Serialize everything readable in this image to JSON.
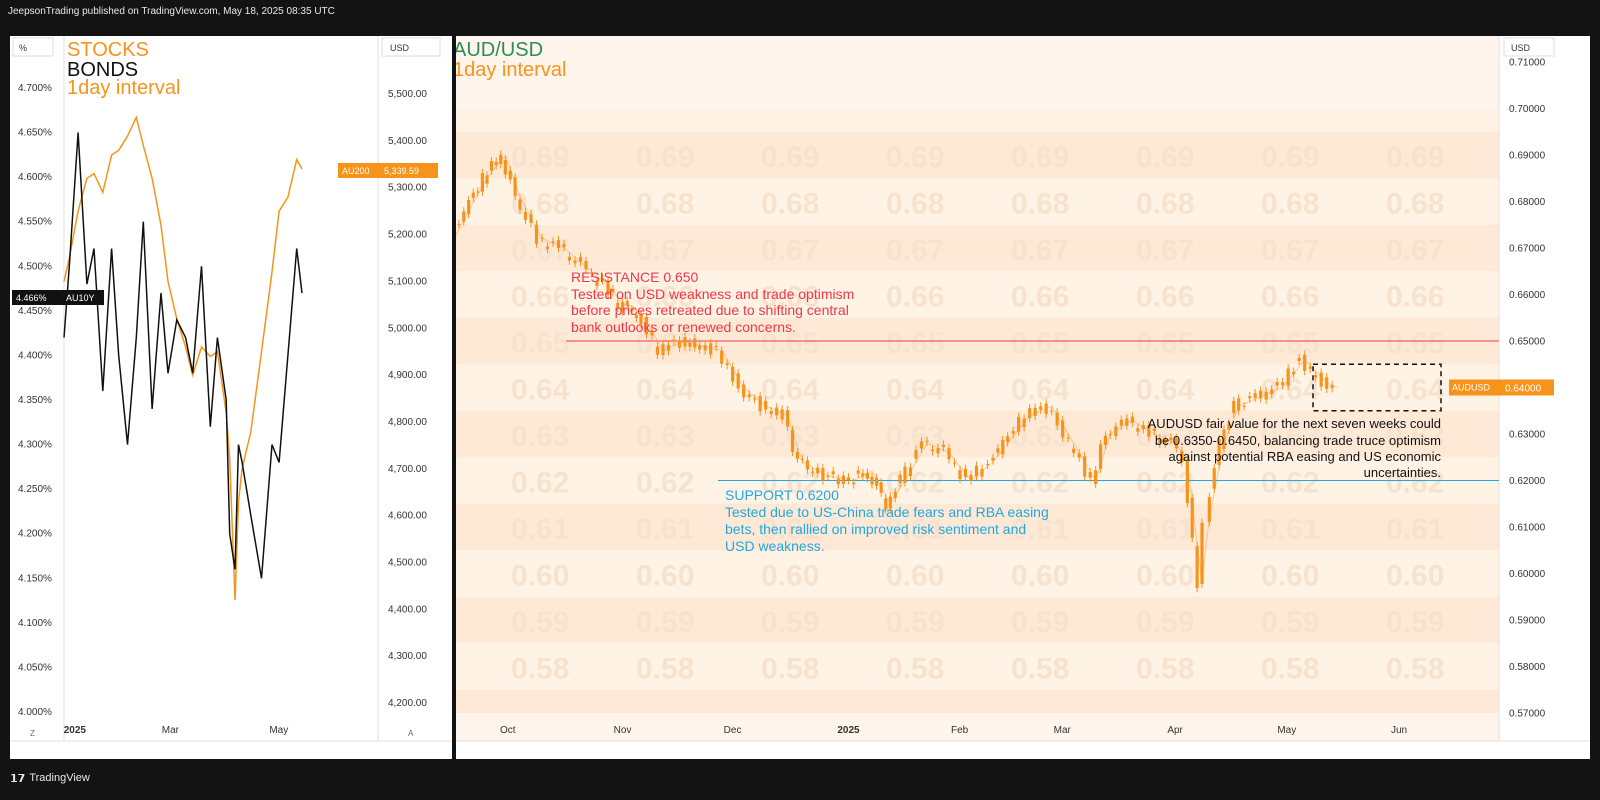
{
  "header": {
    "published": "JeepsonTrading published on TradingView.com, May 18, 2025 08:35 UTC"
  },
  "footer": {
    "logo_text": "TradingView",
    "logo_icon": "tradingview-logo-icon"
  },
  "colors": {
    "orange": "#f7931a",
    "black": "#111111",
    "green_title": "#2e8b57",
    "resistance": "#f23645",
    "support": "#22a7e0",
    "band": "#fde6d0",
    "band_light": "#fff3e7"
  },
  "left_chart": {
    "title_stocks": "STOCKS",
    "title_bonds": "BONDS",
    "interval": "1day interval",
    "left_unit": "%",
    "right_unit": "USD",
    "scale_left_btn": "Z",
    "scale_right_btn": "A",
    "yield_badge_value": "4.466%",
    "yield_badge_label": "AU10Y",
    "index_badge_label": "AU200",
    "index_badge_value": "5,339.59",
    "left_ticks": [
      "4.700%",
      "4.650%",
      "4.600%",
      "4.550%",
      "4.500%",
      "4.450%",
      "4.400%",
      "4.350%",
      "4.300%",
      "4.250%",
      "4.200%",
      "4.150%",
      "4.100%",
      "4.050%",
      "4.000%"
    ],
    "right_ticks": [
      "5,500.00",
      "5,400.00",
      "5,300.00",
      "5,200.00",
      "5,100.00",
      "5,000.00",
      "4,900.00",
      "4,800.00",
      "4,700.00",
      "4,600.00",
      "4,500.00",
      "4,400.00",
      "4,300.00",
      "4,200.00"
    ],
    "x_labels": [
      "2025",
      "Mar",
      "May"
    ]
  },
  "right_chart": {
    "title": "AUD/USD",
    "interval": "1day interval",
    "unit": "USD",
    "price_badge_label": "AUDUSD",
    "price_badge_value": "0.64000",
    "y_ticks": [
      "0.71000",
      "0.70000",
      "0.69000",
      "0.68000",
      "0.67000",
      "0.66000",
      "0.65000",
      "0.64000",
      "0.63000",
      "0.62000",
      "0.61000",
      "0.60000",
      "0.59000",
      "0.58000",
      "0.57000"
    ],
    "x_labels": [
      "Oct",
      "Nov",
      "Dec",
      "2025",
      "Feb",
      "Mar",
      "Apr",
      "May",
      "Jun"
    ],
    "watermark_levels": [
      "0.69",
      "0.68",
      "0.67",
      "0.66",
      "0.65",
      "0.64",
      "0.63",
      "0.62",
      "0.61",
      "0.60",
      "0.59",
      "0.58"
    ],
    "resistance_title": "RESISTANCE 0.650",
    "resistance_lines": [
      "Tested on USD weakness and trade optimism",
      "before prices retreated due to shifting central",
      "bank outlooks or renewed concerns."
    ],
    "support_title": "SUPPORT 0.6200",
    "support_lines": [
      "Tested due to US-China trade fears and RBA easing",
      "bets, then rallied on improved risk sentiment and",
      "USD weakness."
    ],
    "fair_value_lines": [
      "AUDUSD fair value for the next seven weeks could",
      "be 0.6350-0.6450, balancing trade truce optimism",
      "against potential RBA easing and US economic",
      "uncertainties."
    ]
  },
  "chart_data": [
    {
      "type": "line",
      "title": "STOCKS BONDS",
      "subtitle": "1day interval",
      "series": [
        {
          "name": "AU200",
          "axis": "right",
          "unit": "USD",
          "color": "#f7931a",
          "x": [
            "2024-12-31",
            "2025-01-03",
            "2025-01-08",
            "2025-01-13",
            "2025-01-17",
            "2025-01-22",
            "2025-01-27",
            "2025-01-31",
            "2025-02-05",
            "2025-02-10",
            "2025-02-14",
            "2025-02-19",
            "2025-02-24",
            "2025-02-28",
            "2025-03-05",
            "2025-03-10",
            "2025-03-14",
            "2025-03-19",
            "2025-03-24",
            "2025-03-28",
            "2025-04-02",
            "2025-04-04",
            "2025-04-07",
            "2025-04-09",
            "2025-04-11",
            "2025-04-16",
            "2025-04-22",
            "2025-04-28",
            "2025-05-02",
            "2025-05-07",
            "2025-05-12",
            "2025-05-15"
          ],
          "values": [
            5100,
            5150,
            5250,
            5320,
            5330,
            5290,
            5370,
            5380,
            5410,
            5450,
            5390,
            5320,
            5220,
            5100,
            5020,
            4960,
            4900,
            4960,
            4940,
            4950,
            4820,
            4720,
            4420,
            4630,
            4700,
            4780,
            4950,
            5120,
            5250,
            5280,
            5360,
            5340
          ]
        },
        {
          "name": "AU10Y",
          "axis": "left",
          "unit": "%",
          "color": "#111111",
          "x": [
            "2024-12-31",
            "2025-01-03",
            "2025-01-08",
            "2025-01-13",
            "2025-01-17",
            "2025-01-22",
            "2025-01-27",
            "2025-01-31",
            "2025-02-05",
            "2025-02-10",
            "2025-02-14",
            "2025-02-19",
            "2025-02-24",
            "2025-02-28",
            "2025-03-05",
            "2025-03-10",
            "2025-03-14",
            "2025-03-19",
            "2025-03-24",
            "2025-03-28",
            "2025-04-02",
            "2025-04-04",
            "2025-04-07",
            "2025-04-09",
            "2025-04-11",
            "2025-04-16",
            "2025-04-22",
            "2025-04-28",
            "2025-05-02",
            "2025-05-07",
            "2025-05-12",
            "2025-05-15"
          ],
          "values": [
            4.42,
            4.5,
            4.65,
            4.48,
            4.52,
            4.36,
            4.52,
            4.4,
            4.3,
            4.42,
            4.55,
            4.34,
            4.47,
            4.38,
            4.44,
            4.42,
            4.38,
            4.5,
            4.32,
            4.42,
            4.35,
            4.2,
            4.16,
            4.3,
            4.28,
            4.22,
            4.15,
            4.3,
            4.28,
            4.4,
            4.52,
            4.47
          ]
        }
      ],
      "ylim_left": [
        4.0,
        4.72
      ],
      "ylim_right": [
        4150,
        5560
      ]
    },
    {
      "type": "line",
      "title": "AUD/USD",
      "subtitle": "1day interval",
      "ylabel": "USD",
      "series": [
        {
          "name": "AUDUSD",
          "color": "#f7931a",
          "x": [
            "2024-09-16",
            "2024-09-20",
            "2024-09-25",
            "2024-09-30",
            "2024-10-04",
            "2024-10-10",
            "2024-10-16",
            "2024-10-22",
            "2024-10-28",
            "2024-11-01",
            "2024-11-06",
            "2024-11-12",
            "2024-11-18",
            "2024-11-22",
            "2024-11-28",
            "2024-12-04",
            "2024-12-10",
            "2024-12-16",
            "2024-12-20",
            "2024-12-27",
            "2025-01-03",
            "2025-01-08",
            "2025-01-13",
            "2025-01-17",
            "2025-01-23",
            "2025-01-29",
            "2025-02-04",
            "2025-02-10",
            "2025-02-14",
            "2025-02-20",
            "2025-02-26",
            "2025-03-04",
            "2025-03-10",
            "2025-03-14",
            "2025-03-20",
            "2025-03-26",
            "2025-04-01",
            "2025-04-04",
            "2025-04-08",
            "2025-04-10",
            "2025-04-14",
            "2025-04-18",
            "2025-04-24",
            "2025-04-30",
            "2025-05-06",
            "2025-05-12",
            "2025-05-15"
          ],
          "values": [
            0.672,
            0.678,
            0.685,
            0.69,
            0.681,
            0.672,
            0.67,
            0.666,
            0.662,
            0.658,
            0.656,
            0.648,
            0.65,
            0.649,
            0.648,
            0.64,
            0.636,
            0.634,
            0.624,
            0.621,
            0.62,
            0.622,
            0.615,
            0.62,
            0.628,
            0.626,
            0.62,
            0.624,
            0.628,
            0.634,
            0.636,
            0.628,
            0.62,
            0.63,
            0.633,
            0.63,
            0.628,
            0.624,
            0.598,
            0.612,
            0.628,
            0.636,
            0.638,
            0.64,
            0.646,
            0.641,
            0.64
          ]
        }
      ],
      "ylim": [
        0.5685,
        0.7115
      ],
      "annotations": [
        "RESISTANCE 0.650",
        "SUPPORT 0.6200",
        "AUDUSD fair value for the next seven weeks could be 0.6350-0.6450"
      ]
    }
  ]
}
